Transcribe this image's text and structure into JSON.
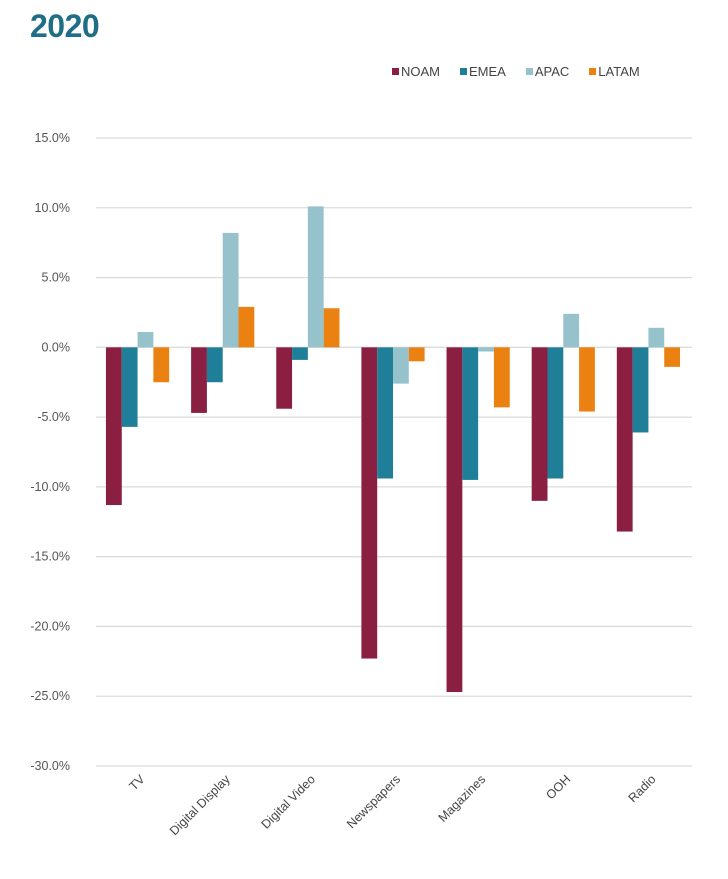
{
  "chart_data": {
    "type": "bar",
    "title": "2020",
    "xlabel": "",
    "ylabel": "",
    "categories": [
      "TV",
      "Digital Display",
      "Digital Video",
      "Newspapers",
      "Magazines",
      "OOH",
      "Radio"
    ],
    "series": [
      {
        "name": "NOAM",
        "color": "#8b1f41",
        "values": [
          -11.3,
          -4.7,
          -4.4,
          -22.3,
          -24.7,
          -11.0,
          -13.2
        ]
      },
      {
        "name": "EMEA",
        "color": "#1f7f99",
        "values": [
          -5.7,
          -2.5,
          -0.9,
          -9.4,
          -9.5,
          -9.4,
          -6.1
        ]
      },
      {
        "name": "APAC",
        "color": "#96c2cc",
        "values": [
          1.1,
          8.2,
          10.1,
          -2.6,
          -0.3,
          2.4,
          1.4
        ]
      },
      {
        "name": "LATAM",
        "color": "#ea8110",
        "values": [
          -2.5,
          2.9,
          2.8,
          -1.0,
          -4.3,
          -4.6,
          -1.4
        ]
      }
    ],
    "ylim": [
      -30,
      15
    ],
    "yticks": [
      15,
      10,
      5,
      0,
      -5,
      -10,
      -15,
      -20,
      -25,
      -30
    ],
    "ytick_labels": [
      "15.0%",
      "10.0%",
      "5.0%",
      "0.0%",
      "-5.0%",
      "-10.0%",
      "-15.0%",
      "-20.0%",
      "-25.0%",
      "-30.0%"
    ],
    "grid": true,
    "legend_position": "top-right"
  },
  "title_color": "#1f6e86"
}
